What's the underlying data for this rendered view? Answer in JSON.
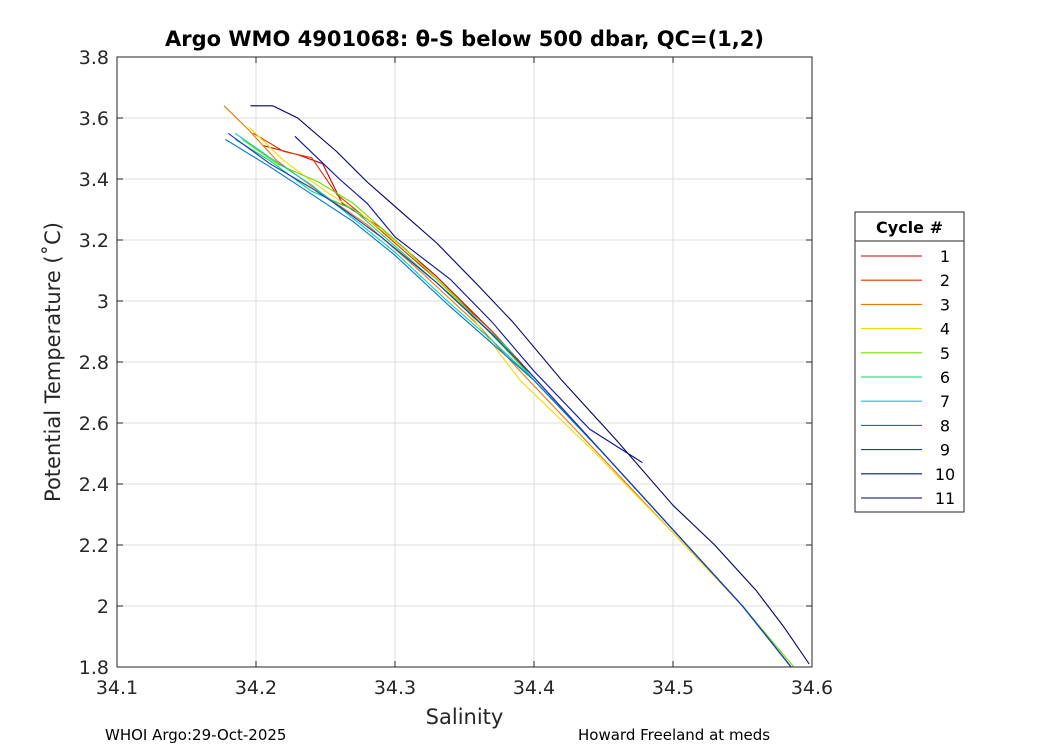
{
  "chart_data": {
    "type": "line",
    "title": "Argo WMO 4901068: θ-S below 500 dbar,  QC=(1,2)",
    "xlabel": "Salinity",
    "ylabel": "Potential Temperature (˚C)",
    "xlim": [
      34.1,
      34.6
    ],
    "ylim": [
      1.8,
      3.8
    ],
    "xticks": [
      "34.1",
      "34.2",
      "34.3",
      "34.4",
      "34.5",
      "34.6"
    ],
    "yticks": [
      "1.8",
      "2",
      "2.2",
      "2.4",
      "2.6",
      "2.8",
      "3",
      "3.2",
      "3.4",
      "3.6",
      "3.8"
    ],
    "grid": true,
    "legend_title": "Cycle #",
    "legend_position": "right",
    "series": [
      {
        "name": "1",
        "color": "#cc0000",
        "points": [
          [
            34.205,
            3.51
          ],
          [
            34.23,
            3.48
          ],
          [
            34.248,
            3.45
          ],
          [
            34.262,
            3.32
          ],
          [
            34.29,
            3.24
          ],
          [
            34.33,
            3.08
          ],
          [
            34.37,
            2.9
          ],
          [
            34.4,
            2.75
          ],
          [
            34.45,
            2.5
          ],
          [
            34.5,
            2.25
          ],
          [
            34.55,
            2.0
          ],
          [
            34.585,
            1.8
          ]
        ]
      },
      {
        "name": "2",
        "color": "#dd3300",
        "points": [
          [
            34.198,
            3.55
          ],
          [
            34.22,
            3.49
          ],
          [
            34.24,
            3.47
          ],
          [
            34.258,
            3.35
          ],
          [
            34.285,
            3.25
          ],
          [
            34.33,
            3.07
          ],
          [
            34.37,
            2.9
          ],
          [
            34.4,
            2.75
          ],
          [
            34.45,
            2.5
          ],
          [
            34.5,
            2.25
          ],
          [
            34.55,
            2.0
          ],
          [
            34.585,
            1.8
          ]
        ]
      },
      {
        "name": "3",
        "color": "#ee7700",
        "points": [
          [
            34.177,
            3.64
          ],
          [
            34.195,
            3.56
          ],
          [
            34.215,
            3.46
          ],
          [
            34.245,
            3.36
          ],
          [
            34.28,
            3.25
          ],
          [
            34.32,
            3.09
          ],
          [
            34.36,
            2.92
          ],
          [
            34.39,
            2.77
          ],
          [
            34.44,
            2.53
          ],
          [
            34.5,
            2.24
          ],
          [
            34.55,
            2.0
          ],
          [
            34.585,
            1.8
          ]
        ]
      },
      {
        "name": "4",
        "color": "#eedd00",
        "points": [
          [
            34.195,
            3.57
          ],
          [
            34.22,
            3.46
          ],
          [
            34.25,
            3.36
          ],
          [
            34.28,
            3.27
          ],
          [
            34.31,
            3.16
          ],
          [
            34.35,
            2.98
          ],
          [
            34.38,
            2.8
          ],
          [
            34.39,
            2.74
          ],
          [
            34.44,
            2.52
          ],
          [
            34.5,
            2.24
          ],
          [
            34.55,
            2.0
          ],
          [
            34.585,
            1.8
          ]
        ]
      },
      {
        "name": "5",
        "color": "#77dd00",
        "points": [
          [
            34.19,
            3.53
          ],
          [
            34.215,
            3.45
          ],
          [
            34.245,
            3.39
          ],
          [
            34.27,
            3.32
          ],
          [
            34.3,
            3.2
          ],
          [
            34.34,
            3.03
          ],
          [
            34.38,
            2.84
          ],
          [
            34.4,
            2.74
          ],
          [
            34.45,
            2.5
          ],
          [
            34.5,
            2.25
          ],
          [
            34.55,
            2.0
          ],
          [
            34.587,
            1.8
          ]
        ]
      },
      {
        "name": "6",
        "color": "#00dd66",
        "points": [
          [
            34.185,
            3.53
          ],
          [
            34.21,
            3.46
          ],
          [
            34.24,
            3.36
          ],
          [
            34.27,
            3.3
          ],
          [
            34.3,
            3.18
          ],
          [
            34.34,
            3.02
          ],
          [
            34.38,
            2.85
          ],
          [
            34.4,
            2.74
          ],
          [
            34.45,
            2.5
          ],
          [
            34.5,
            2.25
          ],
          [
            34.55,
            2.0
          ],
          [
            34.585,
            1.8
          ]
        ]
      },
      {
        "name": "7",
        "color": "#00cccc",
        "points": [
          [
            34.185,
            3.55
          ],
          [
            34.21,
            3.47
          ],
          [
            34.24,
            3.38
          ],
          [
            34.27,
            3.27
          ],
          [
            34.3,
            3.16
          ],
          [
            34.34,
            2.99
          ],
          [
            34.37,
            2.87
          ],
          [
            34.4,
            2.74
          ],
          [
            34.45,
            2.5
          ],
          [
            34.5,
            2.25
          ],
          [
            34.55,
            2.0
          ],
          [
            34.585,
            1.8
          ]
        ]
      },
      {
        "name": "8",
        "color": "#0077cc",
        "points": [
          [
            34.178,
            3.53
          ],
          [
            34.21,
            3.44
          ],
          [
            34.24,
            3.35
          ],
          [
            34.27,
            3.26
          ],
          [
            34.3,
            3.15
          ],
          [
            34.34,
            2.98
          ],
          [
            34.37,
            2.86
          ],
          [
            34.4,
            2.74
          ],
          [
            34.45,
            2.5
          ],
          [
            34.5,
            2.25
          ],
          [
            34.55,
            2.0
          ],
          [
            34.585,
            1.8
          ]
        ]
      },
      {
        "name": "9",
        "color": "#1a33cc",
        "points": [
          [
            34.18,
            3.55
          ],
          [
            34.21,
            3.45
          ],
          [
            34.24,
            3.37
          ],
          [
            34.26,
            3.31
          ],
          [
            34.29,
            3.21
          ],
          [
            34.33,
            3.06
          ],
          [
            34.37,
            2.89
          ],
          [
            34.4,
            2.75
          ],
          [
            34.45,
            2.5
          ],
          [
            34.5,
            2.25
          ],
          [
            34.55,
            2.0
          ],
          [
            34.585,
            1.8
          ]
        ]
      },
      {
        "name": "10",
        "color": "#0a1199",
        "points": [
          [
            34.228,
            3.54
          ],
          [
            34.26,
            3.4
          ],
          [
            34.28,
            3.32
          ],
          [
            34.3,
            3.21
          ],
          [
            34.34,
            3.07
          ],
          [
            34.37,
            2.93
          ],
          [
            34.4,
            2.77
          ],
          [
            34.44,
            2.58
          ],
          [
            34.478,
            2.47
          ]
        ]
      },
      {
        "name": "11",
        "color": "#000066",
        "points": [
          [
            34.196,
            3.64
          ],
          [
            34.212,
            3.64
          ],
          [
            34.23,
            3.6
          ],
          [
            34.258,
            3.49
          ],
          [
            34.28,
            3.39
          ],
          [
            34.3,
            3.31
          ],
          [
            34.33,
            3.19
          ],
          [
            34.36,
            3.05
          ],
          [
            34.385,
            2.93
          ],
          [
            34.42,
            2.74
          ],
          [
            34.46,
            2.54
          ],
          [
            34.5,
            2.33
          ],
          [
            34.53,
            2.2
          ],
          [
            34.56,
            2.05
          ],
          [
            34.58,
            1.93
          ],
          [
            34.598,
            1.81
          ]
        ]
      }
    ]
  },
  "footer": {
    "left": "WHOI Argo:29-Oct-2025",
    "right": "Howard Freeland at meds"
  }
}
